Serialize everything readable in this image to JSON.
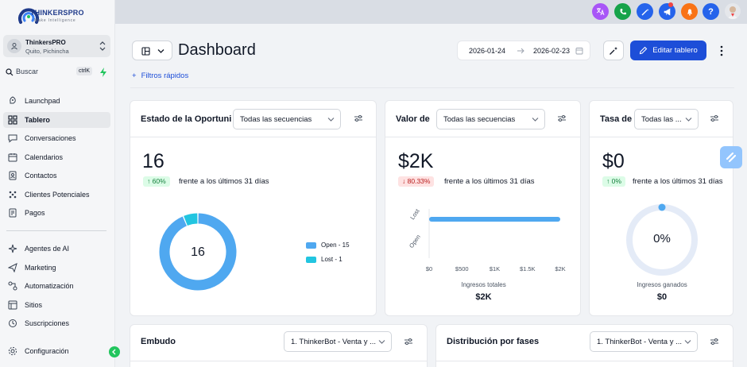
{
  "brand": {
    "name": "THINKERSPRO",
    "tagline": "Make Intelligence"
  },
  "account": {
    "name": "ThinkersPRO",
    "location": "Quito, Pichincha"
  },
  "search": {
    "label": "Buscar",
    "shortcut": "ctrlK"
  },
  "sidebar": {
    "items": [
      {
        "label": "Launchpad",
        "icon": "rocket-icon"
      },
      {
        "label": "Tablero",
        "icon": "dashboard-icon",
        "active": true
      },
      {
        "label": "Conversaciones",
        "icon": "chat-icon"
      },
      {
        "label": "Calendarios",
        "icon": "calendar-icon"
      },
      {
        "label": "Contactos",
        "icon": "contacts-icon"
      },
      {
        "label": "Clientes Potenciales",
        "icon": "leads-icon"
      },
      {
        "label": "Pagos",
        "icon": "payments-icon"
      },
      {
        "label": "Agentes de AI",
        "icon": "ai-agents-icon"
      },
      {
        "label": "Marketing",
        "icon": "marketing-icon"
      },
      {
        "label": "Automatización",
        "icon": "automation-icon"
      },
      {
        "label": "Sitios",
        "icon": "sites-icon"
      },
      {
        "label": "Suscripciones",
        "icon": "subscriptions-icon"
      },
      {
        "label": "Configuración",
        "icon": "settings-icon"
      }
    ]
  },
  "header": {
    "title": "Dashboard",
    "date_from": "2026-01-24",
    "date_to": "2026-02-23",
    "edit_label": "Editar tablero",
    "filters_label": "Filtros rápidos",
    "filters_plus": "+"
  },
  "colors": {
    "primary": "#1d4ed8",
    "open": "#4fa8f0",
    "lost": "#22c5e0",
    "success": "#15803d",
    "danger": "#b91c1c"
  },
  "cards": {
    "estado": {
      "title": "Estado de la Oportunidad",
      "select": "Todas las secuencias",
      "value": "16",
      "change": "60%",
      "change_arrow": "↑",
      "compare": "frente a los últimos 31 días",
      "center_label": "16"
    },
    "valor": {
      "title": "Valor de Oportunidades",
      "select": "Todas las secuencias",
      "value": "$2K",
      "change": "80.33%",
      "change_arrow": "↓",
      "compare": "frente a los últimos 31 días",
      "bottom_label": "Ingresos totales",
      "bottom_value": "$2K"
    },
    "tasa": {
      "title": "Tasa de conversión",
      "select": "Todas las ...",
      "value": "$0",
      "change": "0%",
      "change_arrow": "↑",
      "compare": "frente a los últimos 31 días",
      "center_label": "0%",
      "bottom_label": "Ingresos ganados",
      "bottom_value": "$0"
    },
    "embudo": {
      "title": "Embudo",
      "select": "1. ThinkerBot - Venta y ..."
    },
    "distribucion": {
      "title": "Distribución por fases",
      "select": "1. ThinkerBot - Venta y ..."
    }
  },
  "chart_data": [
    {
      "type": "pie",
      "variant": "donut",
      "categories": [
        "Open",
        "Lost"
      ],
      "values": [
        15,
        1
      ],
      "legend": [
        "Open - 15",
        "Lost - 1"
      ],
      "legend_placement": "right",
      "center_text": "16"
    },
    {
      "type": "bar",
      "orientation": "horizontal",
      "categories": [
        "Lost",
        "Open"
      ],
      "values": [
        2000,
        0
      ],
      "xticks": [
        "$0",
        "$500",
        "$1K",
        "$1.5K",
        "$2K"
      ],
      "xlim": [
        0,
        2000
      ]
    }
  ]
}
